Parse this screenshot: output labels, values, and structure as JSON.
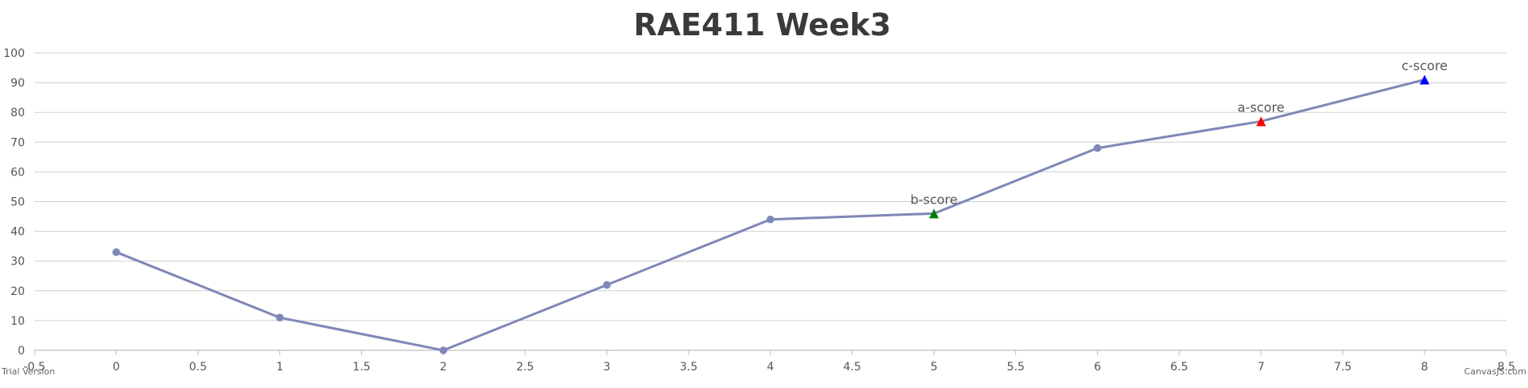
{
  "chart_data": {
    "type": "line",
    "title": "RAE411 Week3",
    "xlabel": "",
    "ylabel": "",
    "xlim": [
      -0.5,
      8.5
    ],
    "ylim": [
      0,
      100
    ],
    "x_ticks": [
      "-0.5",
      "0",
      "0.5",
      "1",
      "1.5",
      "2",
      "2.5",
      "3",
      "3.5",
      "4",
      "4.5",
      "5",
      "5.5",
      "6",
      "6.5",
      "7",
      "7.5",
      "8",
      "8.5"
    ],
    "y_ticks": [
      "0",
      "10",
      "20",
      "30",
      "40",
      "50",
      "60",
      "70",
      "80",
      "90",
      "100"
    ],
    "grid": "horizontal",
    "line_color": "#7f87b8",
    "series": [
      {
        "points": [
          {
            "x": 0,
            "y": 33
          },
          {
            "x": 1,
            "y": 11
          },
          {
            "x": 2,
            "y": 0
          },
          {
            "x": 3,
            "y": 22
          },
          {
            "x": 4,
            "y": 44
          },
          {
            "x": 5,
            "y": 46,
            "label": "b-score",
            "marker": "triangle",
            "color": "#008000"
          },
          {
            "x": 6,
            "y": 68
          },
          {
            "x": 7,
            "y": 77,
            "label": "a-score",
            "marker": "triangle",
            "color": "#ff0000"
          },
          {
            "x": 8,
            "y": 91,
            "label": "c-score",
            "marker": "triangle",
            "color": "#0000ff"
          }
        ]
      }
    ]
  },
  "footer": {
    "left_text": "Trial Version",
    "right_text": "CanvasJS.com"
  }
}
